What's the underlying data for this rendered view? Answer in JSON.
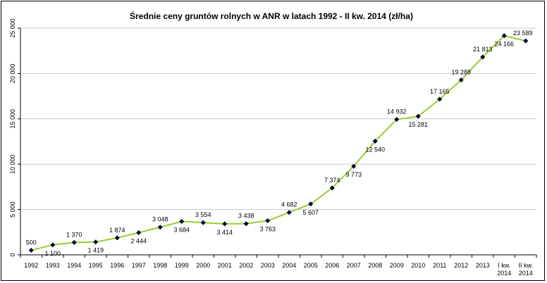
{
  "chart_data": {
    "type": "line",
    "title": "Średnie ceny gruntów rolnych w ANR w latach 1992 - II kw. 2014 (zł/ha)",
    "xlabel": "",
    "ylabel": "",
    "categories": [
      [
        "1992"
      ],
      [
        "1993"
      ],
      [
        "1994"
      ],
      [
        "1995"
      ],
      [
        "1996"
      ],
      [
        "1997"
      ],
      [
        "1998"
      ],
      [
        "1999"
      ],
      [
        "2000"
      ],
      [
        "2001"
      ],
      [
        "2002"
      ],
      [
        "2003"
      ],
      [
        "2004"
      ],
      [
        "2005"
      ],
      [
        "2006"
      ],
      [
        "2007"
      ],
      [
        "2008"
      ],
      [
        "2009"
      ],
      [
        "2010"
      ],
      [
        "2011"
      ],
      [
        "2012"
      ],
      [
        "2013"
      ],
      [
        "I kw.",
        "2014"
      ],
      [
        "II kw.",
        "2014"
      ]
    ],
    "values": [
      500,
      1100,
      1370,
      1419,
      1874,
      2444,
      3048,
      3684,
      3554,
      3414,
      3438,
      3763,
      4682,
      5607,
      7374,
      9773,
      12540,
      14932,
      15281,
      17165,
      19288,
      21813,
      24166,
      23589
    ],
    "data_labels": [
      "500",
      "1 100",
      "1 370",
      "1 419",
      "1 874",
      "2 444",
      "3 048",
      "3 684",
      "3 554",
      "3 414",
      "3 438",
      "3 763",
      "4 682",
      "5 607",
      "7 374",
      "9 773",
      "12 540",
      "14 932",
      "15 281",
      "17 165",
      "19 288",
      "21 813",
      "24 166",
      "23 589"
    ],
    "label_position": [
      "above",
      "below",
      "above",
      "below",
      "above",
      "below",
      "above",
      "below",
      "above",
      "below",
      "above",
      "below",
      "above",
      "below",
      "above",
      "below",
      "below",
      "above",
      "below",
      "above",
      "above",
      "above",
      "below",
      "above"
    ],
    "ylim": [
      0,
      25000
    ],
    "yticks": [
      0,
      5000,
      10000,
      15000,
      20000,
      25000
    ],
    "ytick_labels": [
      "0",
      "5 000",
      "10 000",
      "15 000",
      "20 000",
      "25 000"
    ],
    "y_tick_rotation": "vertical",
    "grid": true,
    "line_color": "#9acd32",
    "marker_color": "#000033",
    "marker": "diamond",
    "legend": "none"
  }
}
